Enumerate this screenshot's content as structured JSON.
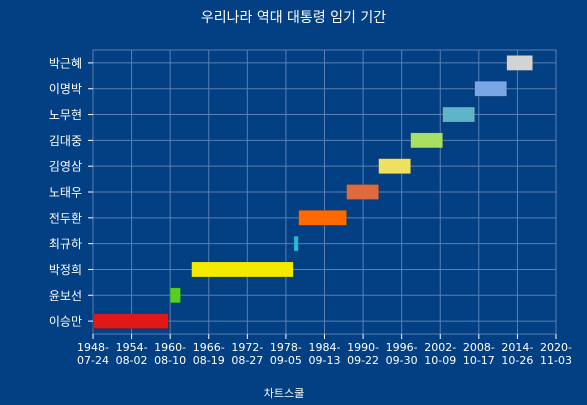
{
  "chart_data": {
    "type": "bar",
    "orientation": "horizontal-range",
    "title": "우리나라 역대 대통령 임기 기간",
    "footer": "차트스쿨",
    "xlim": [
      "1948-07-24",
      "2020-11-03"
    ],
    "x_ticks": [
      {
        "line1": "1948-",
        "line2": "07-24",
        "date": "1948-07-24"
      },
      {
        "line1": "1954-",
        "line2": "08-02",
        "date": "1954-08-02"
      },
      {
        "line1": "1960-",
        "line2": "08-10",
        "date": "1960-08-10"
      },
      {
        "line1": "1966-",
        "line2": "08-19",
        "date": "1966-08-19"
      },
      {
        "line1": "1972-",
        "line2": "08-27",
        "date": "1972-08-27"
      },
      {
        "line1": "1978-",
        "line2": "09-05",
        "date": "1978-09-05"
      },
      {
        "line1": "1984-",
        "line2": "09-13",
        "date": "1984-09-13"
      },
      {
        "line1": "1990-",
        "line2": "09-22",
        "date": "1990-09-22"
      },
      {
        "line1": "1996-",
        "line2": "09-30",
        "date": "1996-09-30"
      },
      {
        "line1": "2002-",
        "line2": "10-09",
        "date": "2002-10-09"
      },
      {
        "line1": "2008-",
        "line2": "10-17",
        "date": "2008-10-17"
      },
      {
        "line1": "2014-",
        "line2": "10-26",
        "date": "2014-10-26"
      },
      {
        "line1": "2020-",
        "line2": "11-03",
        "date": "2020-11-03"
      }
    ],
    "categories": [
      "박근혜",
      "이명박",
      "노무현",
      "김대중",
      "김영삼",
      "노태우",
      "전두환",
      "최규하",
      "박정희",
      "윤보선",
      "이승만"
    ],
    "bars": [
      {
        "name": "박근혜",
        "start": "2013-02-25",
        "end": "2017-03-10",
        "color": "#d3d3d3"
      },
      {
        "name": "이명박",
        "start": "2008-02-25",
        "end": "2013-02-24",
        "color": "#7ba6e6"
      },
      {
        "name": "노무현",
        "start": "2003-02-25",
        "end": "2008-02-24",
        "color": "#5fb4c8"
      },
      {
        "name": "김대중",
        "start": "1998-02-25",
        "end": "2003-02-24",
        "color": "#a8e063"
      },
      {
        "name": "김영삼",
        "start": "1993-02-25",
        "end": "1998-02-24",
        "color": "#f0e060"
      },
      {
        "name": "노태우",
        "start": "1988-02-25",
        "end": "1993-02-24",
        "color": "#e06a40"
      },
      {
        "name": "전두환",
        "start": "1980-09-01",
        "end": "1988-02-24",
        "color": "#ff6a00"
      },
      {
        "name": "최규하",
        "start": "1979-12-06",
        "end": "1980-08-16",
        "color": "#2ab7d8"
      },
      {
        "name": "박정희",
        "start": "1963-12-17",
        "end": "1979-10-26",
        "color": "#f4ea00"
      },
      {
        "name": "윤보선",
        "start": "1960-08-13",
        "end": "1962-03-24",
        "color": "#55d020"
      },
      {
        "name": "이승만",
        "start": "1948-07-24",
        "end": "1960-04-26",
        "color": "#e01818"
      }
    ],
    "grid": true,
    "legend": false
  }
}
